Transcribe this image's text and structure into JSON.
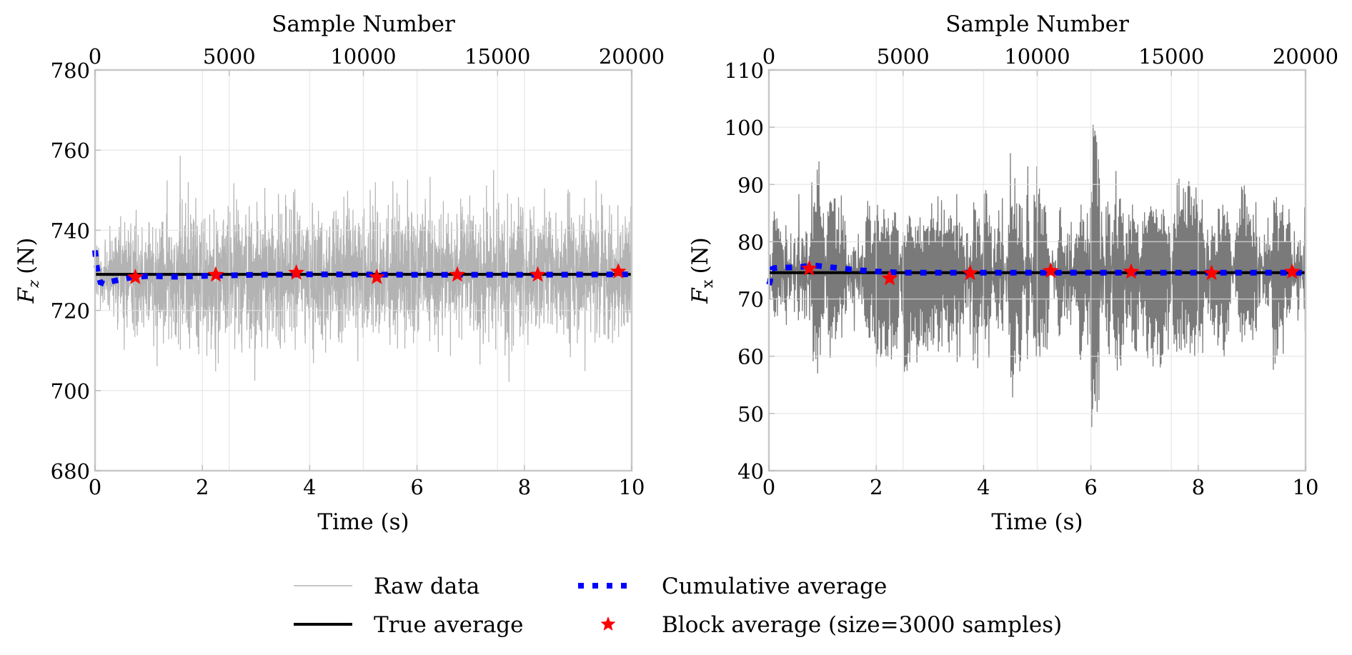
{
  "chart_data": [
    {
      "type": "line",
      "panel": "left",
      "title": "",
      "xlabel": "Time (s)",
      "ylabel_main": "F",
      "ylabel_sub": "z",
      "ylabel_unit": "(N)",
      "top_xlabel": "Sample Number",
      "xlim": [
        0,
        10
      ],
      "ylim": [
        680,
        780
      ],
      "top_xlim": [
        0,
        20000
      ],
      "xticks": [
        0,
        2,
        4,
        6,
        8,
        10
      ],
      "xtick_labels": [
        "0",
        "2",
        "4",
        "6",
        "8",
        "10"
      ],
      "yticks": [
        680,
        700,
        720,
        740,
        760,
        780
      ],
      "ytick_labels": [
        "680",
        "700",
        "720",
        "740",
        "760",
        "780"
      ],
      "top_xticks": [
        0,
        5000,
        10000,
        15000,
        20000
      ],
      "top_xtick_labels": [
        "0",
        "5000",
        "10000",
        "15000",
        "20000"
      ],
      "grid": true,
      "sample_rate_hz": 2000,
      "n_samples": 20000,
      "raw_color": "#b3b3b3",
      "raw_envelope_step_s": 0.5,
      "raw_envelope_max": [
        748,
        757,
        756,
        768,
        757,
        762,
        758,
        763,
        761,
        760,
        759,
        762,
        760,
        757,
        763,
        760,
        758,
        761,
        760,
        759
      ],
      "raw_envelope_min": [
        703,
        698,
        700,
        695,
        696,
        696,
        692,
        700,
        699,
        697,
        700,
        702,
        698,
        702,
        697,
        700,
        699,
        697,
        700,
        701
      ],
      "true_average": 729.0,
      "cumulative_average": {
        "t": [
          0.0,
          0.02,
          0.05,
          0.1,
          0.2,
          0.3,
          0.5,
          0.7,
          1.0,
          1.5,
          2.0,
          3.0,
          4.0,
          6.0,
          8.0,
          10.0
        ],
        "y": [
          735.0,
          732.0,
          729.5,
          727.0,
          726.5,
          727.2,
          727.8,
          728.3,
          728.6,
          728.4,
          728.6,
          728.9,
          729.0,
          728.9,
          728.9,
          729.0
        ]
      },
      "block_average": {
        "block_size_samples": 3000,
        "t": [
          0.75,
          2.25,
          3.75,
          5.25,
          6.75,
          8.25,
          9.75
        ],
        "y": [
          728.3,
          728.9,
          729.4,
          728.3,
          728.9,
          728.9,
          729.7
        ]
      }
    },
    {
      "type": "line",
      "panel": "right",
      "title": "",
      "xlabel": "Time (s)",
      "ylabel_main": "F",
      "ylabel_sub": "x",
      "ylabel_unit": "(N)",
      "top_xlabel": "Sample Number",
      "xlim": [
        0,
        10
      ],
      "ylim": [
        40,
        110
      ],
      "top_xlim": [
        0,
        20000
      ],
      "xticks": [
        0,
        2,
        4,
        6,
        8,
        10
      ],
      "xtick_labels": [
        "0",
        "2",
        "4",
        "6",
        "8",
        "10"
      ],
      "yticks": [
        40,
        50,
        60,
        70,
        80,
        90,
        100,
        110
      ],
      "ytick_labels": [
        "40",
        "50",
        "60",
        "70",
        "80",
        "90",
        "100",
        "110"
      ],
      "top_xticks": [
        0,
        5000,
        10000,
        15000,
        20000
      ],
      "top_xtick_labels": [
        "0",
        "5000",
        "10000",
        "15000",
        "20000"
      ],
      "grid": true,
      "sample_rate_hz": 2000,
      "n_samples": 20000,
      "raw_color": "#7a7a7a",
      "raw_envelope_step_s": 0.5,
      "raw_envelope_max": [
        88,
        97,
        92,
        88,
        87,
        85,
        88,
        90,
        90,
        96,
        90,
        88,
        103,
        88,
        87,
        92,
        88,
        90,
        89,
        90
      ],
      "raw_envelope_min": [
        62,
        55,
        58,
        60,
        58,
        57,
        60,
        54,
        57,
        50,
        57,
        58,
        47,
        58,
        57,
        59,
        58,
        60,
        57,
        60
      ],
      "true_average": 74.6,
      "cumulative_average": {
        "t": [
          0.0,
          0.02,
          0.05,
          0.1,
          0.2,
          0.4,
          0.6,
          0.8,
          1.0,
          1.3,
          1.6,
          2.0,
          2.5,
          3.0,
          4.0,
          6.0,
          8.0,
          10.0
        ],
        "y": [
          72.5,
          73.0,
          75.2,
          75.4,
          75.5,
          75.5,
          75.6,
          75.9,
          75.7,
          75.4,
          75.1,
          74.8,
          74.6,
          74.6,
          74.6,
          74.6,
          74.6,
          74.6
        ]
      },
      "block_average": {
        "block_size_samples": 3000,
        "t": [
          0.75,
          2.25,
          3.75,
          5.25,
          6.75,
          8.25,
          9.75
        ],
        "y": [
          75.3,
          73.6,
          74.5,
          74.9,
          74.75,
          74.5,
          74.75
        ]
      }
    }
  ],
  "legend": {
    "items": [
      {
        "key": "raw",
        "label": "Raw data",
        "color": "#b3b3b3"
      },
      {
        "key": "true",
        "label": "True average",
        "color": "#000000"
      },
      {
        "key": "cumulative",
        "label": "Cumulative average",
        "color": "#0000ff"
      },
      {
        "key": "block",
        "label": "Block average (size=3000 samples)",
        "color": "#ff0000"
      }
    ]
  },
  "colors": {
    "axes_frame": "#c8c8c8",
    "grid": "#e3e3e3",
    "true_average": "#000000",
    "cumulative_average": "#0000ff",
    "block_average": "#ff0000"
  }
}
